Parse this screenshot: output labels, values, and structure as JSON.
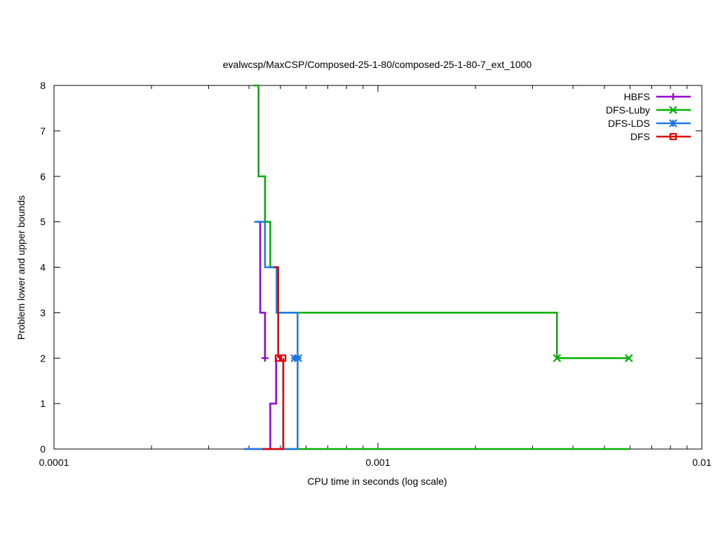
{
  "chart_data": {
    "type": "line",
    "title": "evalwcsp/MaxCSP/Composed-25-1-80/composed-25-1-80-7_ext_1000",
    "xlabel": "CPU time in seconds (log scale)",
    "ylabel": "Problem lower and upper bounds",
    "xscale": "log",
    "xlim": [
      0.0001,
      0.01
    ],
    "ylim": [
      0,
      8
    ],
    "x_ticks": [
      0.0001,
      0.001,
      0.01
    ],
    "x_tick_labels": [
      "0.0001",
      "0.001",
      "0.01"
    ],
    "y_ticks": [
      0,
      1,
      2,
      3,
      4,
      5,
      6,
      7,
      8
    ],
    "y_tick_labels": [
      "0",
      "1",
      "2",
      "3",
      "4",
      "5",
      "6",
      "7",
      "8"
    ],
    "grid": false,
    "legend_position": "top-right",
    "series": [
      {
        "name": "HBFS",
        "color": "#9400d3",
        "marker": "plus",
        "upper": [
          [
            0.000423,
            5
          ],
          [
            0.000433,
            3
          ],
          [
            0.000448,
            2
          ]
        ],
        "lower": [
          [
            0.000385,
            0
          ],
          [
            0.000465,
            1
          ],
          [
            0.000485,
            2
          ]
        ],
        "markers": [
          [
            0.000448,
            2
          ]
        ]
      },
      {
        "name": "DFS-Luby",
        "color": "#00b000",
        "marker": "x",
        "upper": [
          [
            0.000412,
            8
          ],
          [
            0.000428,
            6
          ],
          [
            0.000448,
            5
          ],
          [
            0.000465,
            4
          ],
          [
            0.000487,
            3
          ],
          [
            0.00357,
            2
          ],
          [
            0.00595,
            2
          ]
        ],
        "lower": [
          [
            0.000487,
            0
          ],
          [
            0.00595,
            0
          ]
        ],
        "markers": [
          [
            0.00357,
            2
          ],
          [
            0.00595,
            2
          ]
        ]
      },
      {
        "name": "DFS-LDS",
        "color": "#1e78e6",
        "marker": "star",
        "upper": [
          [
            0.000415,
            5
          ],
          [
            0.000448,
            4
          ],
          [
            0.000487,
            3
          ],
          [
            0.000565,
            2
          ]
        ],
        "lower": [
          [
            0.000385,
            0
          ],
          [
            0.000565,
            0
          ],
          [
            0.000565,
            2
          ]
        ],
        "markers": [
          [
            0.000553,
            2
          ],
          [
            0.000567,
            2
          ]
        ]
      },
      {
        "name": "DFS",
        "color": "#e00000",
        "marker": "square",
        "upper": [
          [
            0.000478,
            4
          ],
          [
            0.000492,
            3
          ],
          [
            0.000492,
            2
          ]
        ],
        "lower": [
          [
            0.00044,
            0
          ],
          [
            0.00051,
            0
          ],
          [
            0.00051,
            2
          ]
        ],
        "markers": [
          [
            0.000493,
            2
          ],
          [
            0.000508,
            2
          ]
        ]
      }
    ]
  }
}
